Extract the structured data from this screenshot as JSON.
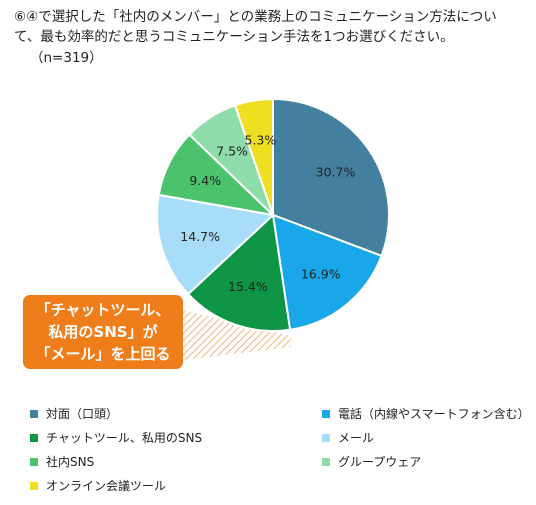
{
  "question": {
    "line1": "⑥④で選択した「社内のメンバー」との業務上のコミュニケーション方法につい",
    "line2": "て、最も効率的だと思うコミュニケーション手法を1つお選びください。",
    "n": "（n=319）"
  },
  "callout": {
    "line1": "「チャットツール、",
    "line2": "私用のSNS」が",
    "line3": "「メール」を上回る"
  },
  "chart_data": {
    "type": "pie",
    "title": "",
    "start_angle_deg": 0,
    "direction": "clockwise",
    "legend_position": "bottom",
    "slices": [
      {
        "label": "対面（口頭）",
        "value": 30.7,
        "value_label": "30.7%",
        "color": "#43809f"
      },
      {
        "label": "電話（内線やスマートフォン含む）",
        "value": 16.9,
        "value_label": "16.9%",
        "color": "#1aa7ea"
      },
      {
        "label": "チャットツール、私用のSNS",
        "value": 15.4,
        "value_label": "15.4%",
        "color": "#0e9545"
      },
      {
        "label": "メール",
        "value": 14.7,
        "value_label": "14.7%",
        "color": "#a8ddf9"
      },
      {
        "label": "社内SNS",
        "value": 9.4,
        "value_label": "9.4%",
        "color": "#4bc36c"
      },
      {
        "label": "グループウェア",
        "value": 7.5,
        "value_label": "7.5%",
        "color": "#8fdcab"
      },
      {
        "label": "オンライン会議ツール",
        "value": 5.3,
        "value_label": "5.3%",
        "color": "#efdf21"
      }
    ]
  },
  "legend_order": [
    0,
    1,
    2,
    3,
    4,
    5,
    6
  ]
}
